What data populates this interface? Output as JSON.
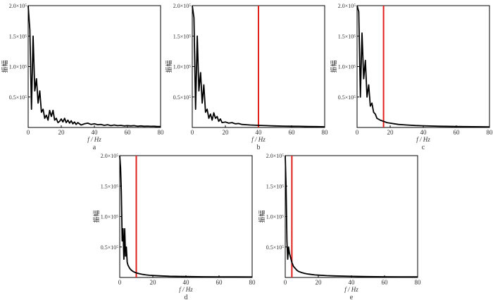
{
  "figure": {
    "colors": {
      "axis": "#000000",
      "signal": "#000000",
      "cutoff": "#e0201b",
      "text": "#333333"
    }
  },
  "chart_data": [
    {
      "id": "a",
      "type": "line",
      "panel_label": "a",
      "xlabel": "f / Hz",
      "ylabel": "振幅",
      "xlim": [
        0,
        80
      ],
      "ylim": [
        0,
        200000
      ],
      "x_ticks": [
        "0",
        "20",
        "40",
        "60",
        "80"
      ],
      "y_ticks": [
        "0.5×10⁵",
        "1.0×10⁵",
        "1.5×10⁵",
        "2.0×10⁵"
      ],
      "cutoff_hz": null,
      "series": [
        {
          "x": [
            0,
            1,
            2,
            3,
            4,
            5,
            6,
            7,
            8,
            9,
            10,
            11,
            12,
            13,
            14,
            15,
            16,
            17,
            18,
            19,
            20,
            21,
            22,
            23,
            24,
            25,
            26,
            27,
            28,
            29,
            30,
            32,
            34,
            36,
            38,
            40,
            42,
            44,
            46,
            48,
            50,
            52,
            54,
            56,
            58,
            60,
            62,
            64,
            66,
            68,
            70,
            72,
            74,
            76,
            78,
            80
          ],
          "y": [
            200000,
            160000,
            30000,
            150000,
            60000,
            80000,
            40000,
            60000,
            25000,
            30000,
            15000,
            20000,
            12000,
            28000,
            18000,
            28000,
            12000,
            15000,
            8000,
            10000,
            14000,
            9000,
            15000,
            8000,
            12000,
            7000,
            11000,
            6000,
            9000,
            5000,
            8000,
            4000,
            6000,
            7000,
            5000,
            6000,
            4500,
            5000,
            3500,
            4500,
            3000,
            4000,
            3000,
            3500,
            2500,
            3000,
            2500,
            3000,
            2000,
            2500,
            2000,
            2200,
            1800,
            2000,
            1500,
            1500
          ]
        }
      ]
    },
    {
      "id": "b",
      "type": "line",
      "panel_label": "b",
      "xlabel": "f / Hz",
      "ylabel": "振幅",
      "xlim": [
        0,
        80
      ],
      "ylim": [
        0,
        200000
      ],
      "x_ticks": [
        "0",
        "20",
        "40",
        "60",
        "80"
      ],
      "y_ticks": [
        "0.5×10⁵",
        "1.0×10⁵",
        "1.5×10⁵",
        "2.0×10⁵"
      ],
      "cutoff_hz": 40,
      "series": [
        {
          "x": [
            0,
            1,
            2,
            3,
            4,
            5,
            6,
            7,
            8,
            9,
            10,
            11,
            12,
            13,
            14,
            15,
            16,
            17,
            18,
            20,
            22,
            24,
            26,
            28,
            30,
            35,
            40,
            45,
            50,
            55,
            60,
            65,
            70,
            75,
            80
          ],
          "y": [
            200000,
            180000,
            30000,
            150000,
            60000,
            90000,
            40000,
            70000,
            25000,
            30000,
            15000,
            22000,
            12000,
            24000,
            15000,
            18000,
            10000,
            14000,
            8000,
            9000,
            7000,
            8000,
            6000,
            6500,
            5000,
            4000,
            3500,
            3000,
            2500,
            2200,
            2000,
            1800,
            1500,
            1400,
            1200
          ]
        }
      ]
    },
    {
      "id": "c",
      "type": "line",
      "panel_label": "c",
      "xlabel": "f / Hz",
      "ylabel": "振幅",
      "xlim": [
        0,
        80
      ],
      "ylim": [
        0,
        200000
      ],
      "x_ticks": [
        "0",
        "20",
        "40",
        "60",
        "80"
      ],
      "y_ticks": [
        "0.5×10⁵",
        "1.0×10⁵",
        "1.5×10⁵",
        "2.0×10⁵"
      ],
      "cutoff_hz": 16,
      "series": [
        {
          "x": [
            0,
            1,
            2,
            3,
            4,
            5,
            6,
            7,
            8,
            9,
            10,
            11,
            12,
            14,
            16,
            18,
            20,
            25,
            30,
            35,
            40,
            50,
            60,
            70,
            80
          ],
          "y": [
            200000,
            190000,
            50000,
            155000,
            80000,
            110000,
            50000,
            70000,
            35000,
            40000,
            25000,
            22000,
            15000,
            12000,
            10000,
            8000,
            7000,
            5000,
            4000,
            3200,
            2800,
            2000,
            1600,
            1300,
            1000
          ]
        }
      ]
    },
    {
      "id": "d",
      "type": "line",
      "panel_label": "d",
      "xlabel": "f / Hz",
      "ylabel": "振幅",
      "xlim": [
        0,
        80
      ],
      "ylim": [
        0,
        200000
      ],
      "x_ticks": [
        "0",
        "20",
        "40",
        "60",
        "80"
      ],
      "y_ticks": [
        "0.5×10⁵",
        "1.0×10⁵",
        "1.5×10⁵",
        "2.0×10⁵"
      ],
      "cutoff_hz": 10,
      "series": [
        {
          "x": [
            0,
            0.5,
            1,
            1.5,
            2,
            2.5,
            3,
            3.5,
            4,
            4.5,
            5,
            6,
            7,
            8,
            9,
            10,
            12,
            14,
            16,
            18,
            20,
            25,
            30,
            40,
            50,
            60,
            70,
            80
          ],
          "y": [
            200000,
            180000,
            140000,
            60000,
            80000,
            30000,
            80000,
            35000,
            50000,
            25000,
            20000,
            15000,
            12000,
            10000,
            8500,
            7500,
            6000,
            5000,
            4200,
            3600,
            3200,
            2500,
            2000,
            1500,
            1200,
            1000,
            900,
            800
          ]
        }
      ]
    },
    {
      "id": "e",
      "type": "line",
      "panel_label": "e",
      "xlabel": "f / Hz",
      "ylabel": "振幅",
      "xlim": [
        0,
        80
      ],
      "ylim": [
        0,
        200000
      ],
      "x_ticks": [
        "0",
        "20",
        "40",
        "60",
        "80"
      ],
      "y_ticks": [
        "0.5×10⁵",
        "1.0×10⁵",
        "1.5×10⁵",
        "2.0×10⁵"
      ],
      "cutoff_hz": 4,
      "series": [
        {
          "x": [
            0,
            0.5,
            1,
            1.5,
            2,
            2.5,
            3,
            3.5,
            4,
            5,
            6,
            7,
            8,
            10,
            12,
            14,
            16,
            18,
            20,
            25,
            30,
            40,
            50,
            60,
            70,
            80
          ],
          "y": [
            200000,
            150000,
            60000,
            30000,
            50000,
            40000,
            35000,
            30000,
            25000,
            18000,
            15000,
            12000,
            10000,
            8000,
            6500,
            5500,
            4800,
            4200,
            3800,
            3000,
            2500,
            1800,
            1400,
            1200,
            1000,
            900
          ]
        }
      ]
    }
  ]
}
